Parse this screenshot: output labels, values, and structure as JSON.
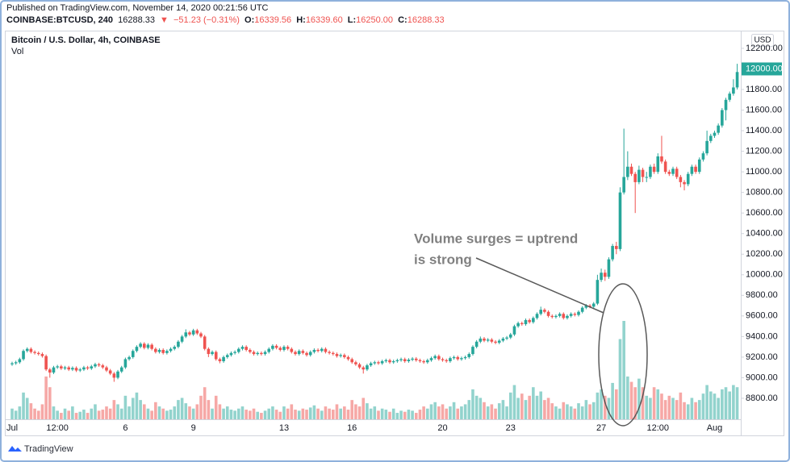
{
  "header": {
    "published": "Published on TradingView.com, November 14, 2020 00:21:56 UTC",
    "symbol": "COINBASE:BTCUSD, 240",
    "last": "16288.33",
    "arrow": "▼",
    "change": "−51.23 (−0.31%)",
    "o_label": "O:",
    "o": "16339.56",
    "h_label": "H:",
    "h": "16339.60",
    "l_label": "L:",
    "l": "16250.00",
    "c_label": "C:",
    "c": "16288.33"
  },
  "chart_data": {
    "type": "candlestick",
    "title": "Bitcoin / U.S. Dollar, 4h, COINBASE",
    "volume_label": "Vol",
    "currency": "USD",
    "annotation": [
      "Volume surges = uptrend",
      "is strong"
    ],
    "up_color": "#26a69a",
    "down_color": "#ef5350",
    "volume_up_color": "#92d3cd",
    "volume_down_color": "#f6a8a6",
    "ylim": [
      8596,
      12372
    ],
    "yticks": [
      {
        "value": 8800,
        "label": "8800.00"
      },
      {
        "value": 9000,
        "label": "9000.00"
      },
      {
        "value": 9200,
        "label": "9200.00"
      },
      {
        "value": 9400,
        "label": "9400.00"
      },
      {
        "value": 9600,
        "label": "9600.00"
      },
      {
        "value": 9800,
        "label": "9800.00"
      },
      {
        "value": 10000,
        "label": "10000.00"
      },
      {
        "value": 10200,
        "label": "10200.00"
      },
      {
        "value": 10400,
        "label": "10400.00"
      },
      {
        "value": 10600,
        "label": "10600.00"
      },
      {
        "value": 10800,
        "label": "10800.00"
      },
      {
        "value": 11000,
        "label": "11000.00"
      },
      {
        "value": 11200,
        "label": "11200.00"
      },
      {
        "value": 11400,
        "label": "11400.00"
      },
      {
        "value": 11600,
        "label": "11600.00"
      },
      {
        "value": 11800,
        "label": "11800.00"
      },
      {
        "value": 12200,
        "label": "12200.00"
      }
    ],
    "price_label": {
      "value": 12000,
      "label": "12000.00"
    },
    "categories": [
      "Jul",
      null,
      null,
      null,
      null,
      null,
      null,
      null,
      null,
      null,
      null,
      null,
      "12:00",
      null,
      null,
      null,
      null,
      null,
      null,
      null,
      null,
      null,
      null,
      null,
      null,
      null,
      null,
      null,
      null,
      null,
      "6",
      null,
      null,
      null,
      null,
      null,
      null,
      null,
      null,
      null,
      null,
      null,
      null,
      null,
      null,
      null,
      null,
      null,
      "9",
      null,
      null,
      null,
      null,
      null,
      null,
      null,
      null,
      null,
      null,
      null,
      null,
      null,
      null,
      null,
      null,
      null,
      null,
      null,
      null,
      null,
      null,
      null,
      "13",
      null,
      null,
      null,
      null,
      null,
      null,
      null,
      null,
      null,
      null,
      null,
      null,
      null,
      null,
      null,
      null,
      null,
      "16",
      null,
      null,
      null,
      null,
      null,
      null,
      null,
      null,
      null,
      null,
      null,
      null,
      null,
      null,
      null,
      null,
      null,
      null,
      null,
      null,
      null,
      null,
      null,
      "20",
      null,
      null,
      null,
      null,
      null,
      null,
      null,
      null,
      null,
      null,
      null,
      null,
      null,
      null,
      null,
      null,
      null,
      "23",
      null,
      null,
      null,
      null,
      null,
      null,
      null,
      null,
      null,
      null,
      null,
      null,
      null,
      null,
      null,
      null,
      null,
      null,
      null,
      null,
      null,
      null,
      null,
      "27",
      null,
      null,
      null,
      null,
      null,
      null,
      null,
      null,
      null,
      null,
      null,
      null,
      null,
      null,
      "12:00",
      null,
      null,
      null,
      null,
      null,
      null,
      null,
      null,
      null,
      null,
      null,
      null,
      null,
      null,
      "Aug",
      null,
      null,
      null,
      null,
      null,
      null
    ],
    "open": [
      9130,
      9140,
      9150,
      9180,
      9260,
      9280,
      9250,
      9240,
      9230,
      9210,
      9080,
      9050,
      9100,
      9110,
      9090,
      9100,
      9080,
      9095,
      9070,
      9080,
      9100,
      9090,
      9110,
      9130,
      9120,
      9100,
      9070,
      9040,
      9000,
      9060,
      9100,
      9180,
      9200,
      9260,
      9300,
      9330,
      9290,
      9320,
      9280,
      9250,
      9270,
      9240,
      9260,
      9280,
      9300,
      9350,
      9400,
      9440,
      9420,
      9460,
      9430,
      9400,
      9280,
      9230,
      9250,
      9180,
      9160,
      9200,
      9220,
      9240,
      9250,
      9280,
      9300,
      9270,
      9250,
      9230,
      9240,
      9230,
      9250,
      9280,
      9310,
      9290,
      9270,
      9300,
      9280,
      9250,
      9230,
      9260,
      9240,
      9220,
      9250,
      9270,
      9260,
      9280,
      9250,
      9240,
      9230,
      9210,
      9220,
      9200,
      9180,
      9150,
      9130,
      9100,
      9080,
      9120,
      9140,
      9150,
      9140,
      9160,
      9170,
      9150,
      9160,
      9170,
      9180,
      9160,
      9175,
      9185,
      9170,
      9160,
      9150,
      9170,
      9190,
      9210,
      9180,
      9170,
      9160,
      9190,
      9200,
      9180,
      9190,
      9200,
      9230,
      9300,
      9350,
      9380,
      9360,
      9370,
      9350,
      9340,
      9360,
      9380,
      9390,
      9420,
      9500,
      9530,
      9520,
      9560,
      9540,
      9580,
      9620,
      9660,
      9640,
      9600,
      9590,
      9600,
      9620,
      9580,
      9600,
      9620,
      9610,
      9640,
      9680,
      9700,
      9690,
      9720,
      9950,
      10020,
      9980,
      10150,
      10280,
      10250,
      10800,
      10950,
      11050,
      10980,
      10900,
      11020,
      10950,
      10950,
      11050,
      11000,
      11150,
      11100,
      11000,
      10980,
      11030,
      10950,
      10900,
      10880,
      10980,
      11050,
      11000,
      11120,
      11180,
      11300,
      11350,
      11380,
      11450,
      11600,
      11700,
      11760,
      11820
    ],
    "high": [
      9155,
      9165,
      9195,
      9275,
      9295,
      9295,
      9265,
      9255,
      9245,
      9225,
      9095,
      9115,
      9125,
      9125,
      9115,
      9115,
      9110,
      9110,
      9095,
      9115,
      9115,
      9125,
      9145,
      9145,
      9135,
      9115,
      9085,
      9055,
      9075,
      9115,
      9195,
      9215,
      9275,
      9315,
      9345,
      9345,
      9335,
      9335,
      9295,
      9285,
      9285,
      9275,
      9295,
      9315,
      9365,
      9415,
      9470,
      9455,
      9475,
      9475,
      9445,
      9415,
      9295,
      9265,
      9265,
      9195,
      9215,
      9235,
      9255,
      9265,
      9295,
      9315,
      9315,
      9285,
      9265,
      9255,
      9255,
      9265,
      9295,
      9325,
      9325,
      9305,
      9315,
      9315,
      9295,
      9265,
      9275,
      9275,
      9255,
      9265,
      9285,
      9285,
      9295,
      9295,
      9265,
      9255,
      9245,
      9235,
      9235,
      9215,
      9195,
      9165,
      9145,
      9115,
      9135,
      9155,
      9165,
      9165,
      9175,
      9185,
      9185,
      9175,
      9185,
      9195,
      9195,
      9190,
      9200,
      9200,
      9185,
      9175,
      9185,
      9205,
      9225,
      9225,
      9195,
      9185,
      9205,
      9215,
      9215,
      9205,
      9215,
      9245,
      9315,
      9365,
      9400,
      9395,
      9385,
      9385,
      9365,
      9375,
      9395,
      9405,
      9435,
      9515,
      9545,
      9545,
      9575,
      9575,
      9595,
      9635,
      9690,
      9675,
      9655,
      9615,
      9615,
      9635,
      9635,
      9615,
      9635,
      9635,
      9655,
      9695,
      9715,
      9715,
      9735,
      10000,
      10060,
      10050,
      10170,
      10300,
      10320,
      10850,
      11420,
      11200,
      11080,
      11000,
      11060,
      11040,
      11000,
      11070,
      11080,
      11180,
      11350,
      11120,
      11020,
      11050,
      11050,
      10970,
      10920,
      11000,
      11070,
      11070,
      11140,
      11200,
      11400,
      11370,
      11400,
      11470,
      11620,
      11720,
      11780,
      11900,
      12050
    ],
    "low": [
      9115,
      9125,
      9135,
      9165,
      9245,
      9235,
      9225,
      9215,
      9195,
      9065,
      9000,
      9035,
      9085,
      9075,
      9075,
      9065,
      9065,
      9055,
      9055,
      9065,
      9075,
      9075,
      9095,
      9105,
      9085,
      9055,
      9025,
      8960,
      8985,
      9045,
      9085,
      9165,
      9185,
      9245,
      9285,
      9275,
      9275,
      9265,
      9235,
      9235,
      9225,
      9225,
      9245,
      9265,
      9285,
      9335,
      9385,
      9405,
      9405,
      9415,
      9385,
      9265,
      9200,
      9215,
      9165,
      9140,
      9145,
      9185,
      9205,
      9225,
      9235,
      9265,
      9255,
      9235,
      9215,
      9215,
      9215,
      9215,
      9235,
      9265,
      9275,
      9255,
      9255,
      9265,
      9235,
      9215,
      9215,
      9225,
      9205,
      9205,
      9235,
      9245,
      9245,
      9235,
      9225,
      9215,
      9195,
      9195,
      9185,
      9165,
      9135,
      9115,
      9085,
      9040,
      9065,
      9105,
      9125,
      9125,
      9125,
      9145,
      9135,
      9135,
      9145,
      9155,
      9145,
      9145,
      9160,
      9155,
      9145,
      9135,
      9135,
      9155,
      9175,
      9165,
      9155,
      9145,
      9145,
      9175,
      9165,
      9165,
      9175,
      9185,
      9215,
      9285,
      9335,
      9345,
      9345,
      9335,
      9325,
      9325,
      9345,
      9365,
      9375,
      9405,
      9485,
      9505,
      9505,
      9525,
      9525,
      9565,
      9605,
      9625,
      9585,
      9575,
      9575,
      9585,
      9565,
      9565,
      9585,
      9595,
      9595,
      9625,
      9665,
      9675,
      9675,
      9705,
      9930,
      9940,
      9960,
      10130,
      10200,
      10230,
      10780,
      10920,
      10960,
      10600,
      10880,
      10900,
      10900,
      10930,
      10980,
      10980,
      11080,
      10980,
      10960,
      10960,
      10930,
      10850,
      10820,
      10860,
      10960,
      10980,
      10980,
      11100,
      11160,
      11280,
      11330,
      11360,
      11430,
      11500,
      11680,
      11740,
      11800
    ],
    "close": [
      9140,
      9150,
      9180,
      9260,
      9280,
      9250,
      9240,
      9230,
      9210,
      9080,
      9050,
      9100,
      9110,
      9090,
      9100,
      9080,
      9095,
      9070,
      9080,
      9100,
      9090,
      9110,
      9130,
      9120,
      9100,
      9070,
      9040,
      9000,
      9060,
      9100,
      9180,
      9200,
      9260,
      9300,
      9330,
      9290,
      9320,
      9280,
      9250,
      9270,
      9240,
      9260,
      9280,
      9300,
      9350,
      9400,
      9440,
      9420,
      9460,
      9430,
      9400,
      9280,
      9230,
      9250,
      9180,
      9160,
      9200,
      9220,
      9240,
      9250,
      9280,
      9300,
      9270,
      9250,
      9230,
      9240,
      9230,
      9250,
      9280,
      9310,
      9290,
      9270,
      9300,
      9280,
      9250,
      9230,
      9260,
      9240,
      9220,
      9250,
      9270,
      9260,
      9280,
      9250,
      9240,
      9230,
      9210,
      9220,
      9200,
      9180,
      9150,
      9130,
      9100,
      9080,
      9120,
      9140,
      9150,
      9140,
      9160,
      9170,
      9150,
      9160,
      9170,
      9180,
      9160,
      9175,
      9185,
      9170,
      9160,
      9150,
      9170,
      9190,
      9210,
      9180,
      9170,
      9160,
      9190,
      9200,
      9180,
      9190,
      9200,
      9230,
      9300,
      9350,
      9380,
      9360,
      9370,
      9350,
      9340,
      9360,
      9380,
      9390,
      9420,
      9500,
      9530,
      9520,
      9560,
      9540,
      9580,
      9620,
      9660,
      9640,
      9600,
      9590,
      9600,
      9620,
      9580,
      9600,
      9620,
      9610,
      9640,
      9680,
      9700,
      9690,
      9720,
      9950,
      10020,
      9980,
      10150,
      10280,
      10250,
      10800,
      10950,
      11050,
      10980,
      10900,
      11020,
      10950,
      10950,
      11050,
      11000,
      11150,
      11100,
      11000,
      10980,
      11030,
      10950,
      10900,
      10880,
      10980,
      11050,
      11000,
      11120,
      11180,
      11300,
      11350,
      11380,
      11450,
      11600,
      11700,
      11760,
      11820,
      11970
    ],
    "volume": [
      10,
      8,
      12,
      25,
      20,
      15,
      10,
      8,
      14,
      40,
      30,
      12,
      8,
      6,
      10,
      8,
      12,
      6,
      7,
      9,
      6,
      10,
      14,
      8,
      9,
      12,
      10,
      18,
      14,
      10,
      22,
      12,
      20,
      25,
      18,
      14,
      10,
      8,
      16,
      12,
      10,
      8,
      9,
      12,
      18,
      20,
      15,
      12,
      10,
      14,
      22,
      30,
      18,
      10,
      22,
      14,
      10,
      12,
      9,
      8,
      10,
      12,
      9,
      8,
      10,
      7,
      6,
      8,
      10,
      12,
      9,
      7,
      12,
      10,
      14,
      9,
      8,
      10,
      9,
      11,
      13,
      10,
      8,
      12,
      10,
      9,
      14,
      10,
      12,
      9,
      18,
      14,
      12,
      20,
      15,
      10,
      12,
      8,
      10,
      9,
      7,
      10,
      6,
      8,
      7,
      9,
      8,
      6,
      9,
      12,
      10,
      14,
      16,
      12,
      14,
      10,
      12,
      16,
      10,
      12,
      14,
      18,
      28,
      22,
      20,
      16,
      12,
      14,
      10,
      15,
      18,
      12,
      25,
      32,
      20,
      24,
      18,
      22,
      30,
      22,
      26,
      18,
      20,
      15,
      12,
      10,
      16,
      14,
      12,
      10,
      15,
      12,
      18,
      14,
      16,
      25,
      28,
      22,
      20,
      34,
      28,
      75,
      92,
      40,
      35,
      30,
      38,
      30,
      22,
      20,
      30,
      28,
      24,
      18,
      22,
      20,
      18,
      25,
      16,
      14,
      20,
      16,
      18,
      24,
      32,
      26,
      24,
      20,
      28,
      30,
      26,
      32,
      30
    ]
  },
  "footer": {
    "logo": "TradingView"
  }
}
